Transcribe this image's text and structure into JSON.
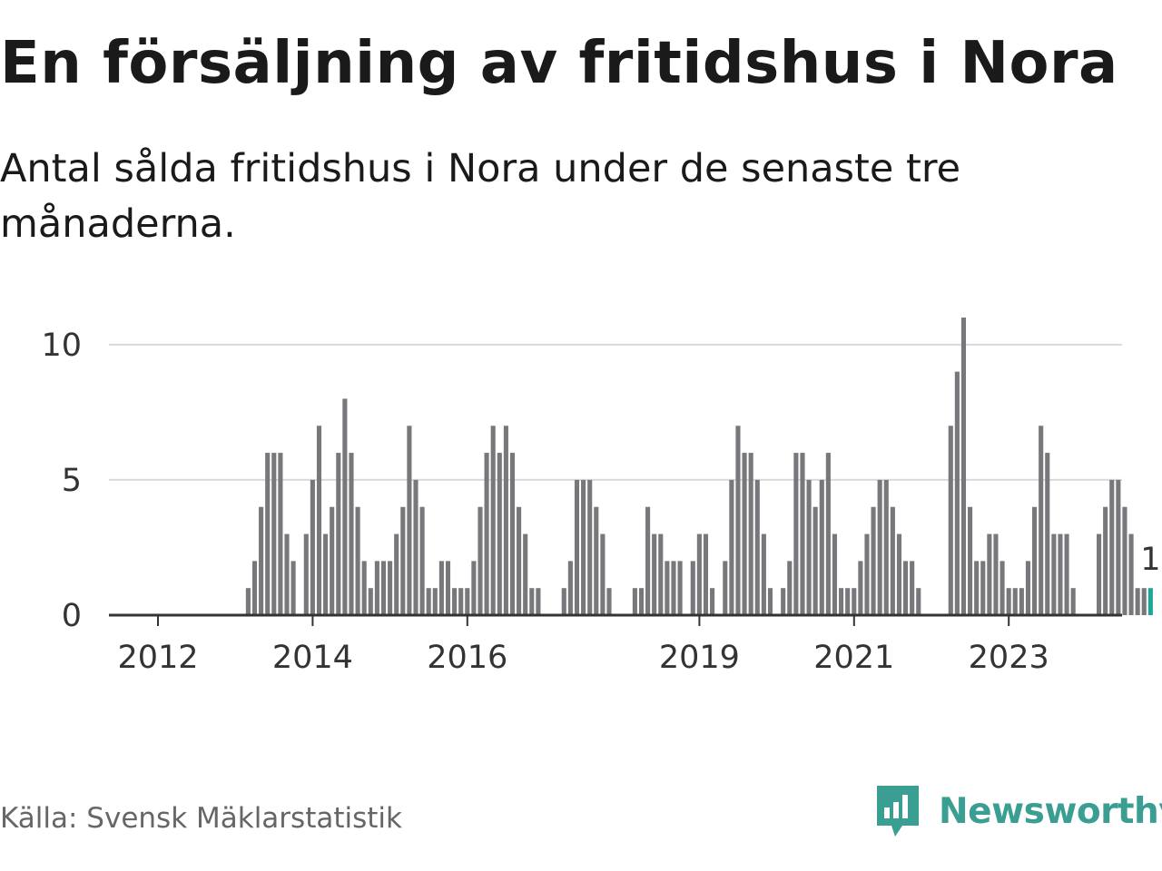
{
  "header": {
    "title": "En försäljning av fritidshus i Nora",
    "subtitle": "Antal sålda fritidshus i Nora under de senaste tre månaderna."
  },
  "footer": {
    "source": "Källa: Svensk Mäklarstatistik",
    "brand": "Newsworthy"
  },
  "colors": {
    "bar": "#78787c",
    "highlight": "#21a497",
    "grid": "#d9d9d9",
    "axis": "#333333",
    "brand": "#3a9e92"
  },
  "icons": {
    "brand_logo": "bar-chart-speech-bubble-icon"
  },
  "chart_data": {
    "type": "bar",
    "title": "En försäljning av fritidshus i Nora",
    "subtitle": "Antal sålda fritidshus i Nora under de senaste tre månaderna.",
    "xlabel": "",
    "ylabel": "",
    "ylim": [
      0,
      11
    ],
    "yticks": [
      0,
      5,
      10
    ],
    "xtick_labels": [
      "2012",
      "2014",
      "2016",
      "2019",
      "2021",
      "2023"
    ],
    "xtick_positions": [
      2012,
      2014,
      2016,
      2019,
      2021,
      2023
    ],
    "x_start": 2012.75,
    "x_step": 0.08333,
    "grid": true,
    "legend": "none",
    "highlight_last": true,
    "last_value_label": "1",
    "values": [
      0,
      0,
      0,
      0,
      0,
      1,
      2,
      4,
      6,
      6,
      6,
      3,
      2,
      0,
      3,
      5,
      7,
      3,
      4,
      6,
      8,
      6,
      4,
      2,
      1,
      2,
      2,
      2,
      3,
      4,
      7,
      5,
      4,
      1,
      1,
      2,
      2,
      1,
      1,
      1,
      2,
      4,
      6,
      7,
      6,
      7,
      6,
      4,
      3,
      1,
      1,
      0,
      0,
      0,
      1,
      2,
      5,
      5,
      5,
      4,
      3,
      1,
      0,
      0,
      0,
      1,
      1,
      4,
      3,
      3,
      2,
      2,
      2,
      0,
      2,
      3,
      3,
      1,
      0,
      2,
      5,
      7,
      6,
      6,
      5,
      3,
      1,
      0,
      1,
      2,
      6,
      6,
      5,
      4,
      5,
      6,
      3,
      1,
      1,
      1,
      2,
      3,
      4,
      5,
      5,
      4,
      3,
      2,
      2,
      1,
      0,
      0,
      0,
      0,
      7,
      9,
      11,
      4,
      2,
      2,
      3,
      3,
      2,
      1,
      1,
      1,
      2,
      4,
      7,
      6,
      3,
      3,
      3,
      1,
      0,
      0,
      0,
      3,
      4,
      5,
      5,
      4,
      3,
      1,
      1,
      1
    ]
  }
}
